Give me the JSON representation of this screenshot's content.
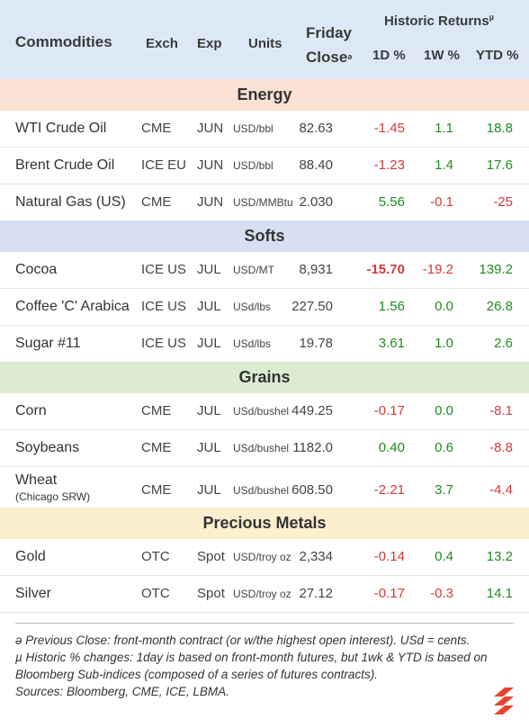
{
  "header": {
    "commodities": "Commodities",
    "exch": "Exch",
    "exp": "Exp",
    "units": "Units",
    "friday_line1": "Friday",
    "friday_line2": "Close",
    "friday_mark": "ə",
    "historic": "Historic Returns",
    "historic_mark": "µ",
    "d1": "1D %",
    "w1": "1W %",
    "ytd": "YTD %"
  },
  "colors": {
    "header_bg": "#dce8f5",
    "energy_bg": "#fbe0d4",
    "softs_bg": "#d6e0f0",
    "grains_bg": "#dcecd2",
    "metals_bg": "#fcefd0",
    "positive": "#1e8c1e",
    "negative": "#d63a3a"
  },
  "sections": [
    {
      "name": "Energy",
      "rows": [
        {
          "name": "WTI Crude Oil",
          "exch": "CME",
          "exp": "JUN",
          "units": "USD/bbl",
          "close": "82.63",
          "d1": "-1.45",
          "w1": "1.1",
          "ytd": "18.8"
        },
        {
          "name": "Brent Crude Oil",
          "exch": "ICE EU",
          "exp": "JUN",
          "units": "USD/bbl",
          "close": "88.40",
          "d1": "-1.23",
          "w1": "1.4",
          "ytd": "17.6"
        },
        {
          "name": "Natural Gas (US)",
          "exch": "CME",
          "exp": "JUN",
          "units": "USD/MMBtu",
          "close": "2.030",
          "d1": "5.56",
          "w1": "-0.1",
          "ytd": "-25"
        }
      ]
    },
    {
      "name": "Softs",
      "rows": [
        {
          "name": "Cocoa",
          "exch": "ICE US",
          "exp": "JUL",
          "units": "USD/MT",
          "close": "8,931",
          "d1": "-15.70",
          "w1": "-19.2",
          "ytd": "139.2"
        },
        {
          "name": "Coffee 'C' Arabica",
          "exch": "ICE US",
          "exp": "JUL",
          "units": "USd/lbs",
          "close": "227.50",
          "d1": "1.56",
          "w1": "0.0",
          "ytd": "26.8"
        },
        {
          "name": "Sugar #11",
          "exch": "ICE US",
          "exp": "JUL",
          "units": "USd/lbs",
          "close": "19.78",
          "d1": "3.61",
          "w1": "1.0",
          "ytd": "2.6"
        }
      ]
    },
    {
      "name": "Grains",
      "rows": [
        {
          "name": "Corn",
          "exch": "CME",
          "exp": "JUL",
          "units": "USd/bushel",
          "close": "449.25",
          "d1": "-0.17",
          "w1": "0.0",
          "ytd": "-8.1"
        },
        {
          "name": "Soybeans",
          "exch": "CME",
          "exp": "JUL",
          "units": "USd/bushel",
          "close": "1182.0",
          "d1": "0.40",
          "w1": "0.6",
          "ytd": "-8.8"
        },
        {
          "name": "Wheat",
          "name_sub": "(Chicago SRW)",
          "exch": "CME",
          "exp": "JUL",
          "units": "USd/bushel",
          "close": "608.50",
          "d1": "-2.21",
          "w1": "3.7",
          "ytd": "-4.4"
        }
      ]
    },
    {
      "name": "Precious Metals",
      "rows": [
        {
          "name": "Gold",
          "exch": "OTC",
          "exp": "Spot",
          "units": "USD/troy oz",
          "close": "2,334",
          "d1": "-0.14",
          "w1": "0.4",
          "ytd": "13.2"
        },
        {
          "name": "Silver",
          "exch": "OTC",
          "exp": "Spot",
          "units": "USD/troy oz",
          "close": "27.12",
          "d1": "-0.17",
          "w1": "-0.3",
          "ytd": "14.1"
        }
      ]
    }
  ],
  "notes": {
    "line1": "ə Previous Close: front-month contract (or w/the highest open interest). USd = cents.",
    "line2": "µ Historic % changes: 1day is based on front-month futures, but 1wk & YTD is based on Bloomberg Sub-indices (composed of a series of futures contracts).",
    "line3": "Sources: Bloomberg, CME, ICE, LBMA."
  },
  "logo_icon": "stacked-chevron-logo-icon"
}
